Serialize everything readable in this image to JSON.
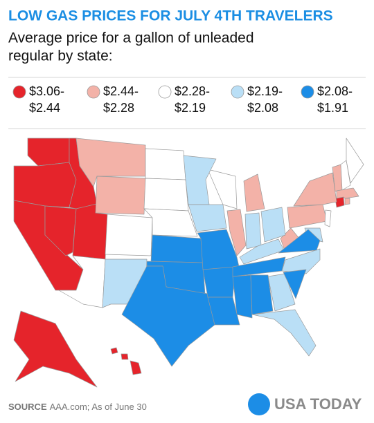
{
  "header": {
    "title": "LOW GAS PRICES FOR JULY 4TH TRAVELERS",
    "subtitle_lines": [
      "Average price for a gallon of unleaded",
      "regular by state:"
    ]
  },
  "legend": {
    "items": [
      {
        "lines": [
          "$3.06-",
          "$2.44"
        ],
        "color": "#e5242b"
      },
      {
        "lines": [
          "$2.44-",
          "$2.28"
        ],
        "color": "#f3b2a8"
      },
      {
        "lines": [
          "$2.28-",
          "$2.19"
        ],
        "color": "#ffffff"
      },
      {
        "lines": [
          "$2.19-",
          "$2.08"
        ],
        "color": "#badff6"
      },
      {
        "lines": [
          "$2.08-",
          "$1.91"
        ],
        "color": "#1c8de6"
      }
    ]
  },
  "footer": {
    "source_label": "SOURCE",
    "source_text": "AAA.com; As of June 30",
    "logo": "USA TODAY"
  }
}
